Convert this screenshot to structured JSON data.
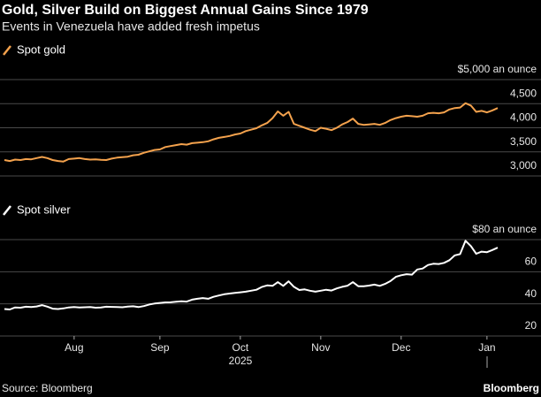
{
  "chart_data": {
    "type": "line",
    "title": "Gold, Silver Build on Biggest Annual Gains Since 1979",
    "subtitle": "Events in Venezuela have added fresh impetus",
    "source": "Source: Bloomberg",
    "brand": "Bloomberg",
    "x_label": "2025",
    "categories": [
      null,
      null,
      null,
      null,
      null,
      null,
      null,
      null,
      null,
      null,
      null,
      null,
      null,
      "Aug",
      null,
      null,
      null,
      null,
      null,
      null,
      null,
      null,
      null,
      null,
      null,
      null,
      null,
      null,
      null,
      "Sep",
      null,
      null,
      null,
      null,
      null,
      null,
      null,
      null,
      null,
      null,
      null,
      null,
      null,
      null,
      "Oct",
      null,
      null,
      null,
      null,
      null,
      null,
      null,
      null,
      null,
      null,
      null,
      null,
      null,
      null,
      "Nov",
      null,
      null,
      null,
      null,
      null,
      null,
      null,
      null,
      null,
      null,
      null,
      null,
      null,
      null,
      "Dec",
      null,
      null,
      null,
      null,
      null,
      null,
      null,
      null,
      null,
      null,
      null,
      null,
      null,
      null,
      null,
      "Jan",
      null,
      null
    ],
    "grid": true,
    "series": [
      {
        "name": "Spot gold",
        "color": "#f4a24d",
        "ylim": [
          3000,
          5000
        ],
        "yticks": [
          {
            "value": 3000,
            "label": "3,000"
          },
          {
            "value": 3500,
            "label": "3,500"
          },
          {
            "value": 4000,
            "label": "4,000"
          },
          {
            "value": 4500,
            "label": "4,500"
          },
          {
            "value": 5000,
            "label": "$5,000 an ounce"
          }
        ],
        "values": [
          3330,
          3310,
          3340,
          3330,
          3350,
          3345,
          3370,
          3395,
          3370,
          3330,
          3310,
          3300,
          3350,
          3360,
          3370,
          3350,
          3340,
          3345,
          3335,
          3330,
          3360,
          3380,
          3390,
          3400,
          3430,
          3440,
          3480,
          3510,
          3540,
          3550,
          3600,
          3620,
          3640,
          3660,
          3650,
          3680,
          3690,
          3700,
          3720,
          3760,
          3790,
          3810,
          3830,
          3860,
          3880,
          3930,
          3960,
          3990,
          4050,
          4100,
          4200,
          4340,
          4250,
          4330,
          4080,
          4040,
          4000,
          3960,
          3930,
          4000,
          3980,
          3950,
          4000,
          4070,
          4120,
          4190,
          4080,
          4060,
          4070,
          4080,
          4060,
          4100,
          4160,
          4200,
          4230,
          4250,
          4240,
          4230,
          4250,
          4300,
          4310,
          4300,
          4320,
          4380,
          4410,
          4420,
          4510,
          4460,
          4330,
          4350,
          4320,
          4360,
          4410
        ]
      },
      {
        "name": "Spot silver",
        "color": "#ffffff",
        "ylim": [
          20,
          80
        ],
        "yticks": [
          20,
          40,
          60,
          {
            "value": 80,
            "label": "$80 an ounce"
          }
        ],
        "values": [
          36.8,
          36.5,
          37.8,
          37.6,
          38.2,
          38.0,
          38.4,
          39.2,
          38.3,
          37.0,
          36.8,
          37.2,
          37.8,
          38.0,
          37.8,
          37.9,
          38.0,
          37.6,
          37.8,
          38.2,
          38.1,
          38.0,
          37.9,
          38.3,
          38.5,
          38.0,
          38.6,
          39.6,
          40.2,
          40.6,
          40.9,
          41.0,
          41.3,
          41.6,
          41.4,
          42.6,
          43.2,
          43.6,
          43.2,
          44.4,
          45.2,
          46.0,
          46.4,
          46.8,
          47.2,
          47.6,
          48.2,
          48.8,
          50.5,
          51.5,
          51.2,
          53.5,
          51.2,
          54.0,
          50.6,
          48.6,
          49.0,
          48.2,
          47.6,
          48.2,
          48.8,
          48.3,
          49.6,
          50.6,
          51.3,
          53.5,
          51.0,
          51.0,
          51.4,
          52.0,
          51.2,
          52.4,
          54.2,
          56.8,
          57.8,
          58.5,
          58.2,
          61.4,
          62.0,
          64.2,
          65.0,
          64.8,
          65.5,
          67.2,
          70.2,
          71.0,
          79.3,
          76.0,
          71.2,
          72.5,
          72.2,
          73.5,
          75.0
        ]
      }
    ]
  }
}
